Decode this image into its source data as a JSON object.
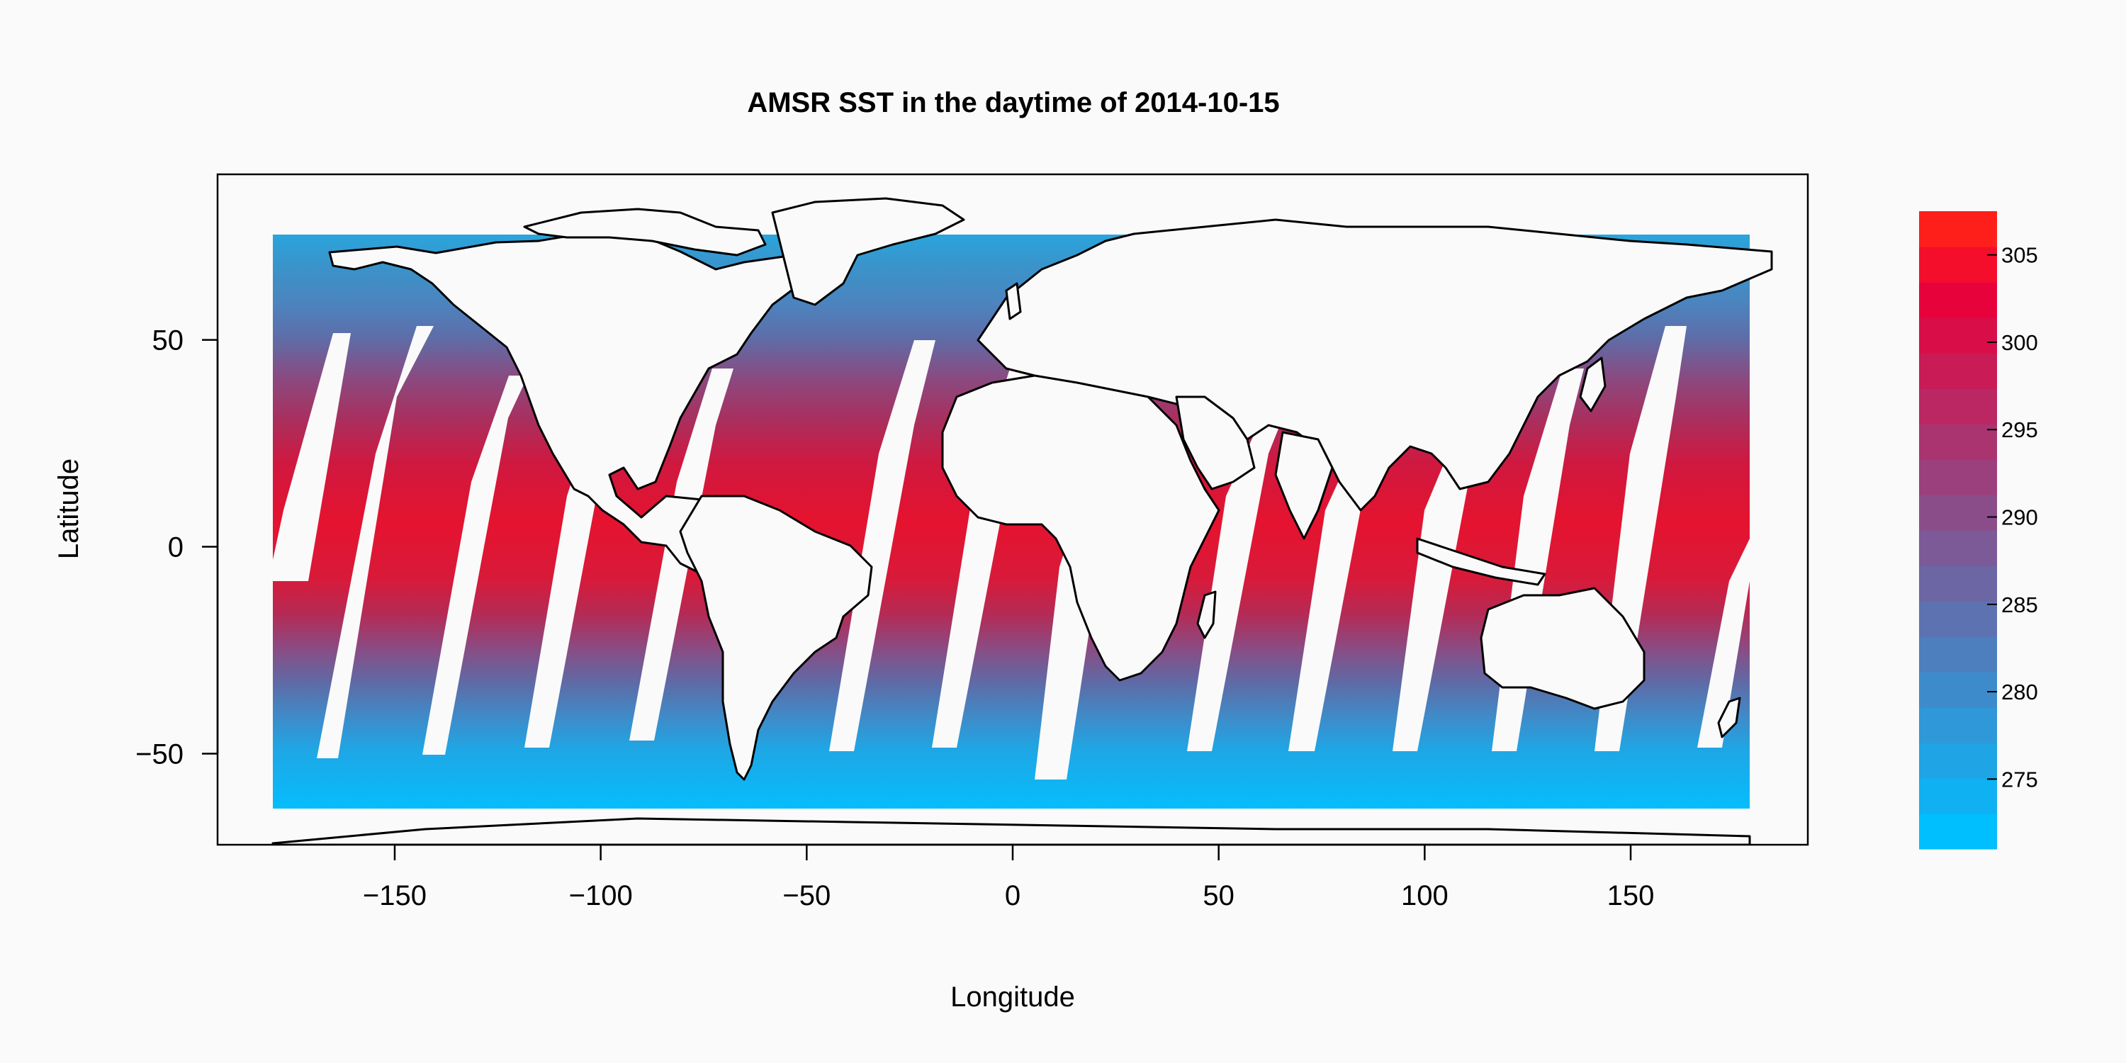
{
  "title": "AMSR SST in the daytime of 2014-10-15",
  "x_axis": {
    "label": "Longitude",
    "range": [
      -193,
      193
    ],
    "ticks": [
      {
        "value": -150,
        "label": "−150"
      },
      {
        "value": -100,
        "label": "−100"
      },
      {
        "value": -50,
        "label": "−50"
      },
      {
        "value": 0,
        "label": "0"
      },
      {
        "value": 50,
        "label": "50"
      },
      {
        "value": 100,
        "label": "100"
      },
      {
        "value": 150,
        "label": "150"
      }
    ]
  },
  "y_axis": {
    "label": "Latitude",
    "range": [
      -72,
      90
    ],
    "ticks": [
      {
        "value": -50,
        "label": "−50"
      },
      {
        "value": 0,
        "label": "0"
      },
      {
        "value": 50,
        "label": "50"
      }
    ]
  },
  "colorbar": {
    "range": [
      271,
      307.5
    ],
    "ticks": [
      {
        "value": 275,
        "label": "275"
      },
      {
        "value": 280,
        "label": "280"
      },
      {
        "value": 285,
        "label": "285"
      },
      {
        "value": 290,
        "label": "290"
      },
      {
        "value": 295,
        "label": "295"
      },
      {
        "value": 300,
        "label": "300"
      },
      {
        "value": 305,
        "label": "305"
      }
    ],
    "colors": [
      "#00bfff",
      "#0fb1f2",
      "#1fa4e5",
      "#2e98d8",
      "#3e8bcb",
      "#4d7fbe",
      "#5d72b1",
      "#6c66a4",
      "#7c5997",
      "#8b4d8a",
      "#9b407d",
      "#aa3470",
      "#ba2763",
      "#c91b56",
      "#d90e49",
      "#e8023c",
      "#f40e2b",
      "#ff1f1a"
    ]
  },
  "data_extent": {
    "lon": [
      -180,
      180
    ],
    "lat": [
      -65,
      75
    ]
  },
  "colors": {
    "background": "#fafafa",
    "land": "#fafafa",
    "outline": "#000000"
  }
}
